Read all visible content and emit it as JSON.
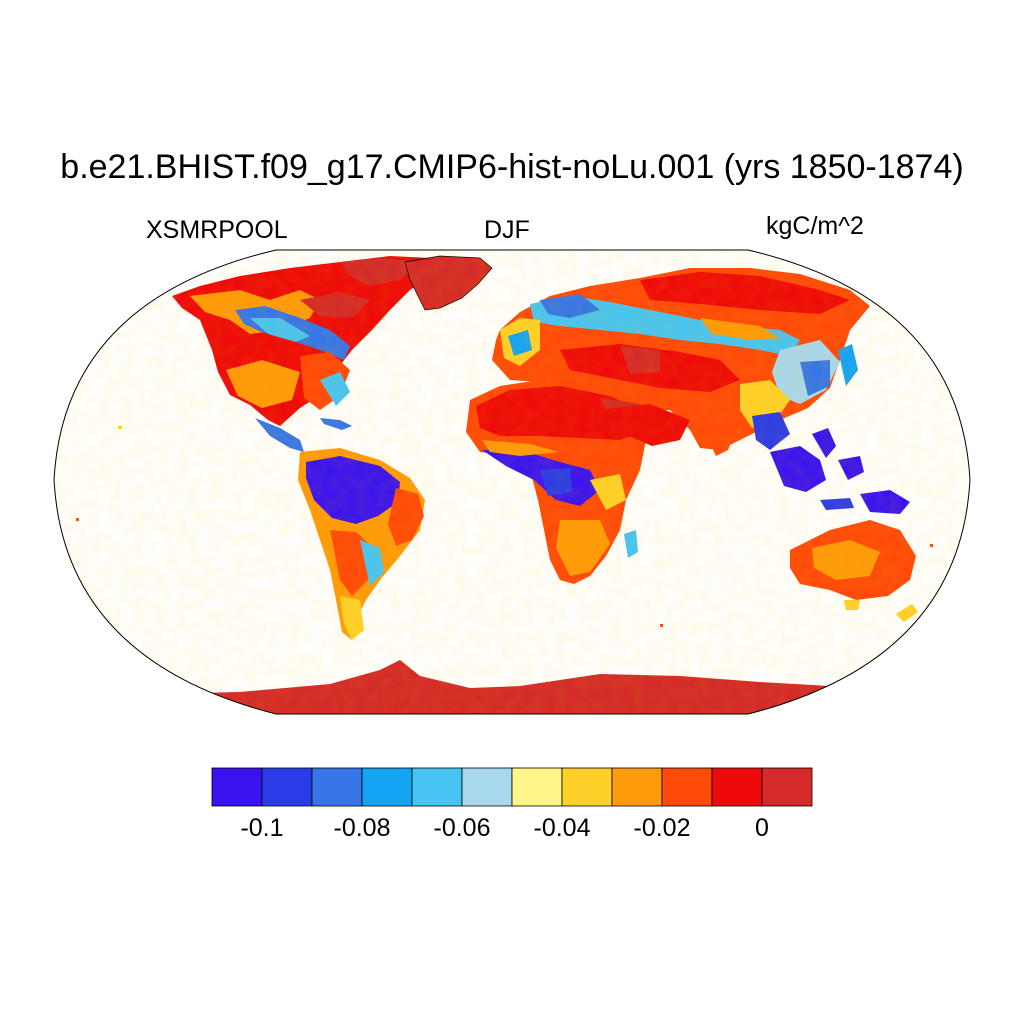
{
  "title": "b.e21.BHIST.f09_g17.CMIP6-hist-noLu.001 (yrs 1850-1874)",
  "left_string": "XSMRPOOL",
  "center_string": "DJF",
  "right_string": "kgC/m^2",
  "colorbar": {
    "colors": [
      "#3a12f0",
      "#2a3ce8",
      "#3676e8",
      "#14a4f4",
      "#48c4f2",
      "#a8d8ee",
      "#fff68a",
      "#ffd02a",
      "#ff9a0a",
      "#ff4a0a",
      "#ee0a0a",
      "#d42a2a"
    ],
    "tick_labels": [
      "-0.1",
      "-0.08",
      "-0.06",
      "-0.04",
      "-0.02",
      "0"
    ]
  }
}
